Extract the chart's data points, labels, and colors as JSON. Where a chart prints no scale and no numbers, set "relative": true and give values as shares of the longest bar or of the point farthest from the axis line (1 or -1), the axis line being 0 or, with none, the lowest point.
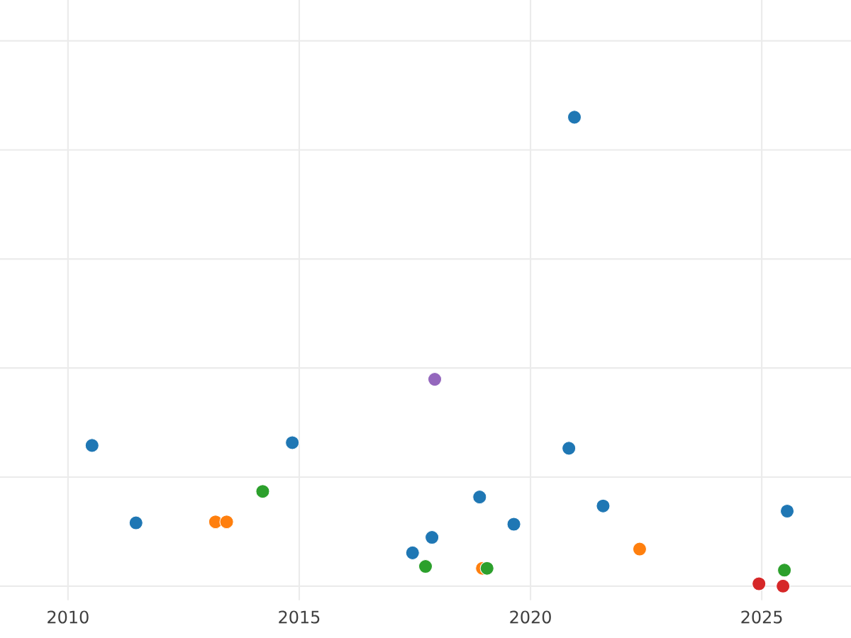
{
  "chart_data": {
    "type": "scatter",
    "relative": true,
    "grid": true,
    "xlim": [
      2008.53,
      2026.93
    ],
    "xticks": [
      2010,
      2015,
      2020,
      2025
    ],
    "series": [
      {
        "color": "#1f77b4",
        "x": [
          2010.52,
          2011.47,
          2014.85,
          2017.45,
          2017.87,
          2018.9,
          2019.64,
          2020.83,
          2020.95,
          2021.57,
          2025.55
        ],
        "values": [
          0.3,
          0.135,
          0.306,
          0.071,
          0.104,
          0.19,
          0.132,
          0.294,
          1,
          0.171,
          0.16
        ]
      },
      {
        "color": "#ff7f0e",
        "x": [
          2013.19,
          2013.43,
          2018.96,
          2022.36
        ],
        "values": [
          0.137,
          0.137,
          0.038,
          0.079
        ]
      },
      {
        "color": "#2ca02c",
        "x": [
          2014.21,
          2017.73,
          2019.06,
          2025.49
        ],
        "values": [
          0.202,
          0.042,
          0.038,
          0.034
        ]
      },
      {
        "color": "#9467bd",
        "x": [
          2017.93
        ],
        "values": [
          0.441
        ]
      },
      {
        "color": "#d62728",
        "x": [
          2024.94,
          2025.46
        ],
        "values": [
          0.005,
          0
        ]
      }
    ]
  }
}
